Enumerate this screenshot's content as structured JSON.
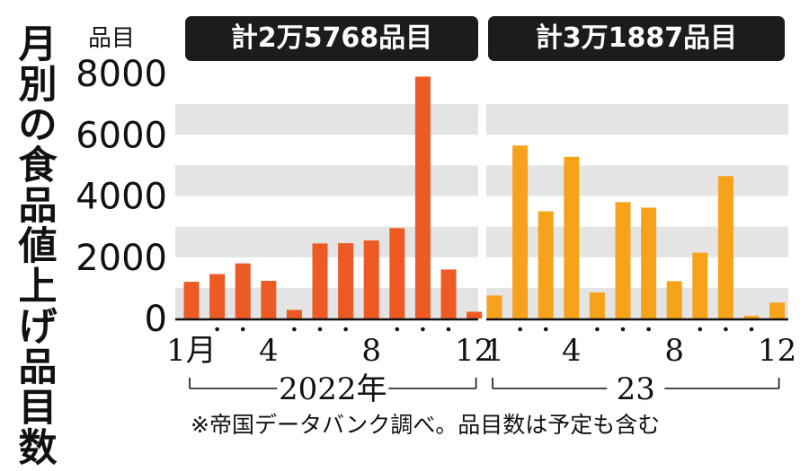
{
  "title": "月別の食品値上げ品目数",
  "unit": "品目",
  "totals": {
    "y2022": "計2万5768品目",
    "y2023": "計3万1887品目"
  },
  "note": "※帝国データバンク調べ。品目数は予定も含む",
  "colors": {
    "y2022": "#ee5a24",
    "y2023": "#f6a21b",
    "band": "#e4e4e4",
    "axis": "#111111"
  },
  "chart_data": {
    "type": "bar",
    "title": "月別の食品値上げ品目数",
    "ylabel": "品目",
    "ylim": [
      0,
      8000
    ],
    "yticks": [
      "0",
      "2000",
      "4000",
      "6000",
      "8000"
    ],
    "grid": "horizontal bands",
    "series": [
      {
        "name": "2022年",
        "total": "計2万5768品目",
        "categories": [
          1,
          2,
          3,
          4,
          5,
          6,
          7,
          8,
          9,
          10,
          11,
          12
        ],
        "values": [
          1200,
          1450,
          1800,
          1230,
          280,
          2450,
          2460,
          2550,
          2950,
          7900,
          1600,
          220
        ],
        "tick_labels": [
          {
            "month": 1,
            "text": "1月"
          },
          {
            "month": 4,
            "text": "4"
          },
          {
            "month": 8,
            "text": "8"
          },
          {
            "month": 12,
            "text": "12"
          }
        ],
        "period_label": "2022年"
      },
      {
        "name": "2023年",
        "total": "計3万1887品目",
        "categories": [
          1,
          2,
          3,
          4,
          5,
          6,
          7,
          8,
          9,
          10,
          11,
          12
        ],
        "values": [
          750,
          5650,
          3500,
          5280,
          850,
          3800,
          3620,
          1220,
          2150,
          4650,
          90,
          520
        ],
        "tick_labels": [
          {
            "month": 1,
            "text": "1"
          },
          {
            "month": 4,
            "text": "4"
          },
          {
            "month": 8,
            "text": "8"
          },
          {
            "month": 12,
            "text": "12"
          }
        ],
        "period_label": "23"
      }
    ]
  }
}
